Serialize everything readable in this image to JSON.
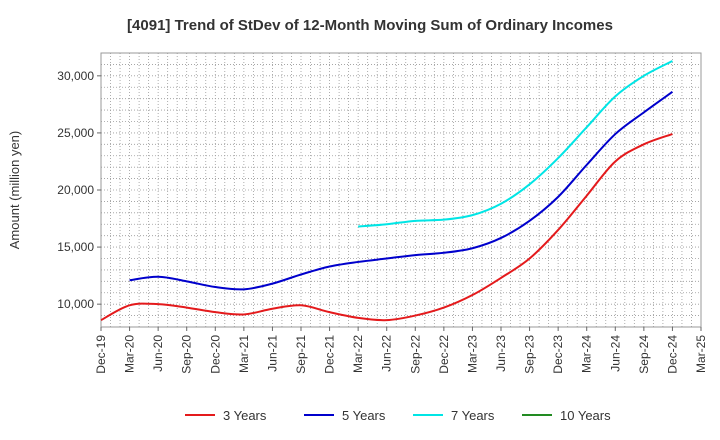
{
  "chart_data": {
    "type": "line",
    "title": "[4091]  Trend of StDev of 12-Month Moving Sum of Ordinary Incomes",
    "ylabel": "Amount (million yen)",
    "xlabel": "",
    "ylim": [
      8000,
      32000
    ],
    "yticks": [
      10000,
      15000,
      20000,
      25000,
      30000
    ],
    "ytick_labels": [
      "10,000",
      "15,000",
      "20,000",
      "25,000",
      "30,000"
    ],
    "xticks": [
      "Dec-19",
      "Mar-20",
      "Jun-20",
      "Sep-20",
      "Dec-20",
      "Mar-21",
      "Jun-21",
      "Sep-21",
      "Dec-21",
      "Mar-22",
      "Jun-22",
      "Sep-22",
      "Dec-22",
      "Mar-23",
      "Jun-23",
      "Sep-23",
      "Dec-23",
      "Mar-24",
      "Jun-24",
      "Sep-24",
      "Dec-24",
      "Mar-25"
    ],
    "grid": true,
    "legend_position": "bottom",
    "series": [
      {
        "name": "3 Years",
        "color": "#e41a1c",
        "x": [
          "Dec-19",
          "Mar-20",
          "Jun-20",
          "Sep-20",
          "Dec-20",
          "Mar-21",
          "Jun-21",
          "Sep-21",
          "Dec-21",
          "Mar-22",
          "Jun-22",
          "Sep-22",
          "Dec-22",
          "Mar-23",
          "Jun-23",
          "Sep-23",
          "Dec-23",
          "Mar-24",
          "Jun-24",
          "Sep-24",
          "Dec-24"
        ],
        "values": [
          8600,
          9900,
          10000,
          9700,
          9300,
          9100,
          9600,
          9900,
          9300,
          8800,
          8600,
          9000,
          9700,
          10800,
          12300,
          14000,
          16500,
          19500,
          22500,
          24000,
          24900
        ]
      },
      {
        "name": "5 Years",
        "color": "#0000cc",
        "x": [
          "Mar-20",
          "Jun-20",
          "Sep-20",
          "Dec-20",
          "Mar-21",
          "Jun-21",
          "Sep-21",
          "Dec-21",
          "Mar-22",
          "Jun-22",
          "Sep-22",
          "Dec-22",
          "Mar-23",
          "Jun-23",
          "Sep-23",
          "Dec-23",
          "Mar-24",
          "Jun-24",
          "Sep-24",
          "Dec-24"
        ],
        "values": [
          12100,
          12400,
          12000,
          11500,
          11300,
          11800,
          12600,
          13300,
          13700,
          14000,
          14300,
          14500,
          14900,
          15800,
          17300,
          19400,
          22200,
          24900,
          26800,
          28600
        ]
      },
      {
        "name": "7 Years",
        "color": "#00e5e5",
        "x": [
          "Mar-22",
          "Jun-22",
          "Sep-22",
          "Dec-22",
          "Mar-23",
          "Jun-23",
          "Sep-23",
          "Dec-23",
          "Mar-24",
          "Jun-24",
          "Sep-24",
          "Dec-24"
        ],
        "values": [
          16800,
          17000,
          17300,
          17400,
          17800,
          18800,
          20500,
          22800,
          25500,
          28200,
          30000,
          31300
        ]
      },
      {
        "name": "10 Years",
        "color": "#228b22",
        "x": [],
        "values": []
      }
    ]
  }
}
